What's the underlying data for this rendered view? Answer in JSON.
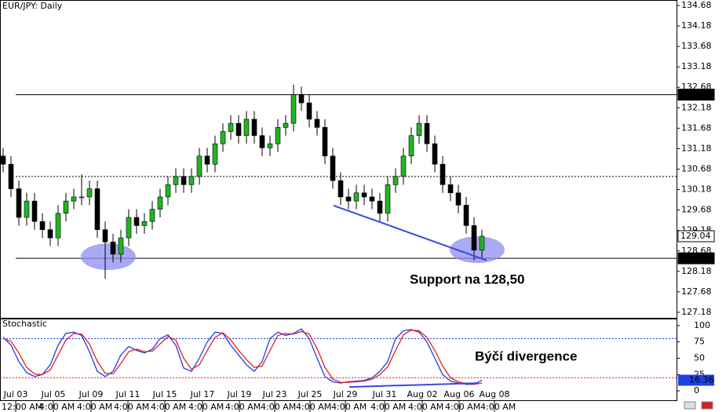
{
  "chart_data": [
    {
      "type": "candlestick",
      "title": "EUR/JPY: Daily",
      "open": [
        131.0,
        130.8,
        130.2,
        129.5,
        129.9,
        129.4,
        129.2,
        129.0,
        129.6,
        129.9,
        130.0,
        130.0,
        130.2,
        129.2,
        128.9,
        128.6,
        129.0,
        129.5,
        129.3,
        129.4,
        129.7,
        130.0,
        130.3,
        130.5,
        130.3,
        130.5,
        131.0,
        130.8,
        131.3,
        131.6,
        131.8,
        131.5,
        131.9,
        131.5,
        131.2,
        131.3,
        131.7,
        131.8,
        132.5,
        132.3,
        131.9,
        131.7,
        131.0,
        130.4,
        130.0,
        129.9,
        130.1,
        130.0,
        129.9,
        129.6,
        130.3,
        130.5,
        131.0,
        131.5,
        131.8,
        131.3,
        130.8,
        130.3,
        130.1,
        129.8,
        129.3,
        128.7
      ],
      "high": [
        131.2,
        131.0,
        130.4,
        130.1,
        130.1,
        129.6,
        129.4,
        129.8,
        130.1,
        130.2,
        130.55,
        130.4,
        130.4,
        129.4,
        129.1,
        129.2,
        129.7,
        129.7,
        129.6,
        129.9,
        130.2,
        130.5,
        130.7,
        130.7,
        130.7,
        131.2,
        131.2,
        131.5,
        131.8,
        132.0,
        132.0,
        132.1,
        132.1,
        131.7,
        131.5,
        131.9,
        132.0,
        132.75,
        132.7,
        132.5,
        132.1,
        131.9,
        131.2,
        130.6,
        130.2,
        130.3,
        130.3,
        130.2,
        130.1,
        130.5,
        130.7,
        131.2,
        131.7,
        132.0,
        132.0,
        131.5,
        131.0,
        130.5,
        130.3,
        130.0,
        129.5,
        129.2
      ],
      "low": [
        130.6,
        130.0,
        129.3,
        129.3,
        129.2,
        129.0,
        128.8,
        128.8,
        129.4,
        129.7,
        129.8,
        129.8,
        129.0,
        128.0,
        128.4,
        128.4,
        128.8,
        129.1,
        129.1,
        129.2,
        129.5,
        129.8,
        130.1,
        130.1,
        130.1,
        130.3,
        130.6,
        130.6,
        131.1,
        131.4,
        131.3,
        131.3,
        131.3,
        131.0,
        131.0,
        131.1,
        131.5,
        131.6,
        132.1,
        131.7,
        131.5,
        130.8,
        130.2,
        129.8,
        129.7,
        129.7,
        129.8,
        129.7,
        129.4,
        129.4,
        130.1,
        130.3,
        130.8,
        131.3,
        131.1,
        130.6,
        130.1,
        129.9,
        129.6,
        129.1,
        128.45,
        128.5
      ],
      "close": [
        130.8,
        130.2,
        129.5,
        129.9,
        129.4,
        129.2,
        129.0,
        129.6,
        129.9,
        130.0,
        130.0,
        130.2,
        129.2,
        128.9,
        128.6,
        129.0,
        129.5,
        129.3,
        129.4,
        129.7,
        130.0,
        130.3,
        130.5,
        130.3,
        130.5,
        131.0,
        130.8,
        131.3,
        131.6,
        131.8,
        131.5,
        131.9,
        131.5,
        131.2,
        131.3,
        131.7,
        131.8,
        132.5,
        132.3,
        131.9,
        131.7,
        131.0,
        130.4,
        130.0,
        129.9,
        130.1,
        130.0,
        129.9,
        129.6,
        130.3,
        130.5,
        131.0,
        131.5,
        131.8,
        131.3,
        130.8,
        130.3,
        130.1,
        129.8,
        129.3,
        128.7,
        129.04
      ],
      "up_color": "#22b422",
      "down_color": "#000000",
      "xlim": [
        -0.4,
        85.8
      ],
      "ylim": [
        127.045,
        134.814
      ],
      "yticks": [
        134.68,
        134.18,
        133.68,
        133.18,
        132.68,
        132.18,
        131.68,
        131.18,
        130.68,
        130.18,
        129.68,
        129.18,
        128.68,
        128.18,
        127.68,
        127.18
      ],
      "levels": [
        {
          "value": 132.5,
          "label": "132.50"
        },
        {
          "value": 128.5,
          "label": "128.50"
        }
      ],
      "dotted_levels": [
        130.5
      ],
      "trendline": {
        "x": [
          42.1,
          61.6
        ],
        "y": [
          129.79,
          128.45
        ],
        "color": "#3c46e6"
      },
      "highlights": {
        "x": [
          13.4,
          60.4
        ],
        "y": [
          128.54,
          128.71
        ],
        "color": "#8c8cf0"
      },
      "annotation": "Support na 128,50"
    },
    {
      "type": "line",
      "title": "Stochastic",
      "series": [
        {
          "name": "Main",
          "color": "#2040e0",
          "values": [
            82,
            70,
            45,
            28,
            22,
            25,
            40,
            70,
            88,
            90,
            85,
            60,
            30,
            22,
            30,
            55,
            68,
            62,
            58,
            64,
            80,
            86,
            70,
            35,
            30,
            50,
            75,
            90,
            88,
            70,
            55,
            40,
            30,
            45,
            80,
            90,
            85,
            88,
            95,
            80,
            50,
            22,
            14,
            12,
            14,
            15,
            16,
            20,
            30,
            45,
            80,
            92,
            94,
            90,
            75,
            50,
            25,
            15,
            12,
            10,
            10,
            16.36
          ]
        },
        {
          "name": "Signal",
          "color": "#e02020",
          "values": [
            80,
            76,
            58,
            36,
            26,
            25,
            32,
            55,
            78,
            88,
            87,
            72,
            45,
            27,
            26,
            42,
            60,
            64,
            60,
            61,
            72,
            83,
            78,
            50,
            33,
            40,
            62,
            82,
            89,
            78,
            62,
            48,
            36,
            38,
            62,
            85,
            88,
            87,
            91,
            87,
            65,
            36,
            18,
            13,
            13,
            14,
            15,
            18,
            25,
            37,
            62,
            86,
            93,
            92,
            82,
            62,
            38,
            20,
            14,
            11,
            10,
            12
          ]
        }
      ],
      "xlim": [
        -0.4,
        85.8
      ],
      "ylim": [
        -14.3,
        110.7
      ],
      "yticks": [
        100,
        75,
        50,
        25,
        0
      ],
      "levels": [
        {
          "value": 80,
          "color": "#2040e0"
        },
        {
          "value": 20,
          "color": "#e02020"
        }
      ],
      "trendline": {
        "x": [
          44.1,
          60.6
        ],
        "y": [
          6,
          12
        ],
        "color": "#3c46e6"
      },
      "annotation": "Býčí divergence",
      "xticks": [
        {
          "value": 1.6,
          "label": "Jul 03"
        },
        {
          "value": 6.4,
          "label": "Jul 05"
        },
        {
          "value": 11.2,
          "label": "Jul 09"
        },
        {
          "value": 15.9,
          "label": "Jul 11"
        },
        {
          "value": 20.6,
          "label": "Jul 15"
        },
        {
          "value": 25.4,
          "label": "Jul 17"
        },
        {
          "value": 30.1,
          "label": "Jul 19"
        },
        {
          "value": 34.6,
          "label": "Jul 23"
        },
        {
          "value": 39.1,
          "label": "Jul 25"
        },
        {
          "value": 43.6,
          "label": "Jul 29"
        },
        {
          "value": 48.6,
          "label": "Jul 31"
        },
        {
          "value": 53.4,
          "label": "Aug 02"
        },
        {
          "value": 58.1,
          "label": "Aug 06"
        },
        {
          "value": 62.6,
          "label": "Aug 08"
        }
      ],
      "xtick_times": [
        "12:00 AM",
        "4:00 AM",
        "4:00 AM",
        "4:00 AM",
        "4:00 AM",
        "4:00 AM",
        "4:00 AM",
        "4:00 AM",
        "4:00 AM",
        "4:00 AM",
        "4:00 AM",
        "4:00 AM",
        "4:00 AM",
        "4:00 AM"
      ]
    }
  ]
}
